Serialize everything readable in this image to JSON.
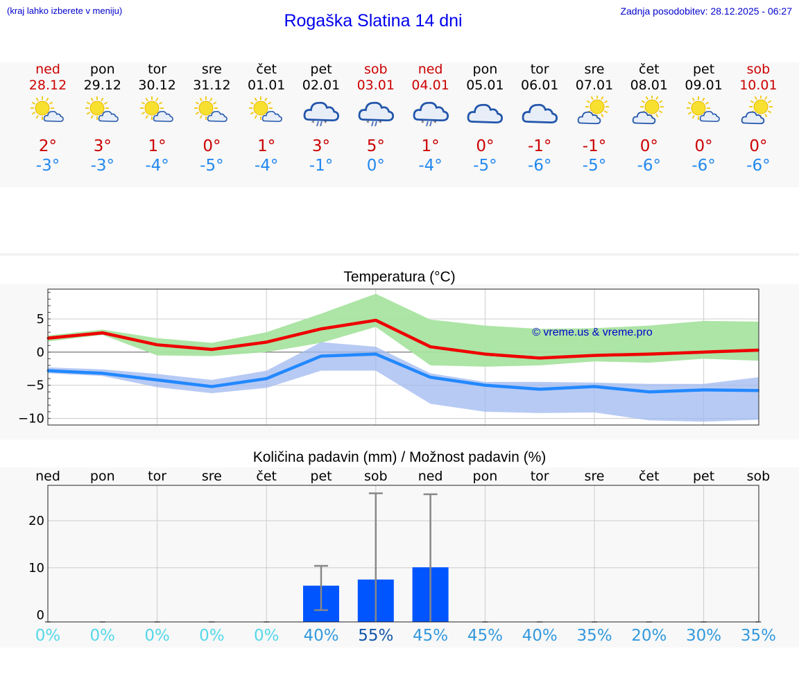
{
  "header": {
    "hint": "(kraj lahko izberete v meniju)",
    "title": "Rogaška Slatina 14 dni",
    "updated": "Zadnja posodobitev: 28.12.2025 - 06:27"
  },
  "colors": {
    "weekend": "#cc0000",
    "weekday": "#000000",
    "max": "#cc0000",
    "min": "#2288ee",
    "bar": "#0055ff"
  },
  "days": [
    {
      "name": "ned",
      "date": "28.12",
      "icon": "sun-cloud-icon",
      "max": "2°",
      "min": "-3°",
      "weekend": true
    },
    {
      "name": "pon",
      "date": "29.12",
      "icon": "sun-cloud-icon",
      "max": "3°",
      "min": "-3°",
      "weekend": false
    },
    {
      "name": "tor",
      "date": "30.12",
      "icon": "sun-cloud-icon",
      "max": "1°",
      "min": "-4°",
      "weekend": false
    },
    {
      "name": "sre",
      "date": "31.12",
      "icon": "sun-cloud-icon",
      "max": "0°",
      "min": "-5°",
      "weekend": false
    },
    {
      "name": "čet",
      "date": "01.01",
      "icon": "sun-cloud-icon",
      "max": "1°",
      "min": "-4°",
      "weekend": false
    },
    {
      "name": "pet",
      "date": "02.01",
      "icon": "snow-cloud-icon",
      "max": "3°",
      "min": "-1°",
      "weekend": false
    },
    {
      "name": "sob",
      "date": "03.01",
      "icon": "snow-cloud-icon",
      "max": "5°",
      "min": "0°",
      "weekend": true
    },
    {
      "name": "ned",
      "date": "04.01",
      "icon": "snow-cloud-icon",
      "max": "1°",
      "min": "-4°",
      "weekend": true
    },
    {
      "name": "pon",
      "date": "05.01",
      "icon": "cloud-icon",
      "max": "0°",
      "min": "-5°",
      "weekend": false
    },
    {
      "name": "tor",
      "date": "06.01",
      "icon": "cloud-icon",
      "max": "-1°",
      "min": "-6°",
      "weekend": false
    },
    {
      "name": "sre",
      "date": "07.01",
      "icon": "cloud-sun-icon",
      "max": "-1°",
      "min": "-5°",
      "weekend": false
    },
    {
      "name": "čet",
      "date": "08.01",
      "icon": "cloud-sun-icon",
      "max": "0°",
      "min": "-6°",
      "weekend": false
    },
    {
      "name": "pet",
      "date": "09.01",
      "icon": "sun-cloud-icon",
      "max": "0°",
      "min": "-6°",
      "weekend": false
    },
    {
      "name": "sob",
      "date": "10.01",
      "icon": "cloud-sun-icon",
      "max": "0°",
      "min": "-6°",
      "weekend": true
    }
  ],
  "chart_data": [
    {
      "type": "line",
      "title": "Temperatura (°C)",
      "watermark": "© vreme.us & vreme.pro",
      "ylim": [
        -11,
        9.5
      ],
      "yticks": [
        5,
        0,
        -5,
        -10
      ],
      "ytick_labels": [
        "5",
        "0",
        "−5",
        "−10"
      ],
      "x": [
        0,
        1,
        2,
        3,
        4,
        5,
        6,
        7,
        8,
        9,
        10,
        11,
        12,
        13
      ],
      "series": [
        {
          "name": "max",
          "color": "#ee0000",
          "values": [
            2.1,
            2.9,
            1.1,
            0.4,
            1.5,
            3.5,
            4.8,
            0.8,
            -0.3,
            -0.9,
            -0.5,
            -0.3,
            0.0,
            0.3
          ]
        },
        {
          "name": "min",
          "color": "#2288ff",
          "values": [
            -2.8,
            -3.2,
            -4.2,
            -5.2,
            -4.0,
            -0.6,
            -0.3,
            -3.8,
            -5.0,
            -5.6,
            -5.2,
            -6.0,
            -5.7,
            -5.8
          ]
        }
      ],
      "max_band": {
        "color": "#a8e4a0",
        "upper": [
          2.5,
          3.4,
          2.1,
          1.4,
          3.0,
          5.8,
          8.8,
          4.9,
          4.0,
          3.5,
          3.6,
          4.0,
          4.7,
          4.6
        ],
        "lower": [
          1.6,
          2.6,
          -0.5,
          -0.6,
          0.0,
          1.4,
          3.8,
          -2.0,
          -2.2,
          -2.0,
          -1.4,
          -1.6,
          -1.0,
          -1.3
        ]
      },
      "min_band": {
        "color": "#9fb8f0",
        "upper": [
          -2.3,
          -2.6,
          -3.3,
          -4.2,
          -2.8,
          1.5,
          0.8,
          -3.2,
          -4.5,
          -4.5,
          -4.6,
          -4.8,
          -4.8,
          -3.8
        ],
        "lower": [
          -3.2,
          -3.6,
          -5.3,
          -6.2,
          -5.4,
          -2.8,
          -2.8,
          -7.8,
          -9.0,
          -9.2,
          -9.1,
          -10.3,
          -10.5,
          -10.2
        ]
      }
    },
    {
      "type": "bar",
      "title": "Količina padavin (mm) / Možnost padavin (%)",
      "categories": [
        "ned",
        "pon",
        "tor",
        "sre",
        "čet",
        "pet",
        "sob",
        "ned",
        "pon",
        "tor",
        "sre",
        "čet",
        "pet",
        "sob"
      ],
      "ylim": [
        -1.5,
        27.5
      ],
      "yticks": [
        20,
        10,
        0
      ],
      "values": [
        0,
        0,
        0,
        0,
        0,
        6.2,
        7.5,
        10.1,
        0,
        0,
        0,
        0,
        0,
        0
      ],
      "error_high": [
        0,
        0,
        0,
        0,
        0,
        10.4,
        25.8,
        25.6,
        0,
        0,
        0,
        0,
        0,
        0
      ],
      "error_low": [
        0,
        0,
        0,
        0,
        0,
        1.0,
        0,
        0,
        0,
        0,
        0,
        0,
        0,
        0
      ],
      "probability": [
        "0%",
        "0%",
        "0%",
        "0%",
        "0%",
        "40%",
        "55%",
        "45%",
        "45%",
        "40%",
        "35%",
        "20%",
        "30%",
        "35%"
      ],
      "probability_colors": [
        "#55d8e8",
        "#55d8e8",
        "#55d8e8",
        "#55d8e8",
        "#55d8e8",
        "#3399dd",
        "#1155aa",
        "#3399dd",
        "#3399dd",
        "#3399dd",
        "#3399dd",
        "#3399dd",
        "#3399dd",
        "#3399dd"
      ]
    }
  ]
}
